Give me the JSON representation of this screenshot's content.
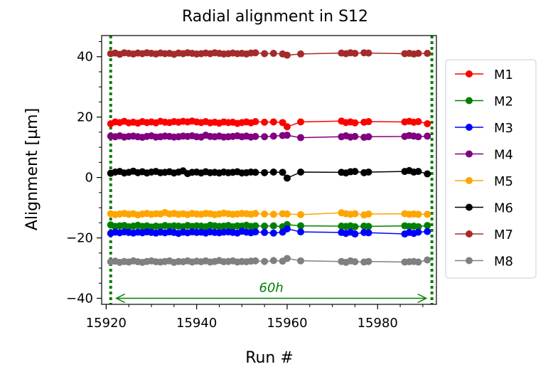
{
  "chart_data": {
    "type": "line",
    "title": "Radial alignment in S12",
    "xlabel": "Run #",
    "ylabel": "Alignment [µm]",
    "xlim": [
      15919,
      15993
    ],
    "ylim": [
      -42,
      47
    ],
    "xticks": [
      15920,
      15940,
      15960,
      15980
    ],
    "xtick_labels": [
      "15920",
      "15940",
      "15960",
      "15980"
    ],
    "yticks": [
      -40,
      -20,
      0,
      20,
      40
    ],
    "ytick_labels": [
      "−40",
      "−20",
      "0",
      "20",
      "40"
    ],
    "grid": false,
    "legend_position": "outside-right",
    "x": [
      15921,
      15922,
      15923,
      15924,
      15925,
      15926,
      15927,
      15928,
      15929,
      15930,
      15931,
      15932,
      15933,
      15934,
      15935,
      15936,
      15937,
      15938,
      15939,
      15940,
      15941,
      15942,
      15943,
      15944,
      15945,
      15946,
      15947,
      15948,
      15949,
      15950,
      15951,
      15952,
      15953,
      15955,
      15957,
      15959,
      15960,
      15963,
      15972,
      15973,
      15974,
      15975,
      15977,
      15978,
      15986,
      15987,
      15988,
      15989,
      15991
    ],
    "series": [
      {
        "name": "M1",
        "color": "#ff0000",
        "values": [
          17.8,
          18.4,
          18.2,
          18.6,
          18.1,
          18.3,
          18.0,
          18.5,
          18.2,
          18.4,
          18.1,
          18.6,
          18.3,
          18.2,
          18.5,
          18.3,
          18.6,
          18.4,
          18.7,
          18.4,
          18.2,
          18.5,
          18.1,
          18.3,
          18.0,
          18.4,
          18.2,
          18.3,
          17.9,
          18.2,
          18.4,
          18.1,
          18.5,
          18.3,
          18.4,
          18.2,
          16.8,
          18.4,
          18.7,
          18.2,
          18.4,
          18.1,
          18.3,
          18.5,
          18.4,
          18.6,
          18.3,
          18.5,
          17.8
        ]
      },
      {
        "name": "M2",
        "color": "#008000",
        "values": [
          -15.7,
          -16.2,
          -16.0,
          -15.9,
          -16.3,
          -16.1,
          -15.8,
          -16.2,
          -16.0,
          -16.4,
          -16.1,
          -16.3,
          -15.9,
          -16.2,
          -16.0,
          -16.1,
          -16.3,
          -15.9,
          -16.2,
          -16.0,
          -16.1,
          -16.3,
          -15.8,
          -16.0,
          -16.2,
          -16.1,
          -15.9,
          -16.3,
          -16.0,
          -16.1,
          -15.8,
          -16.2,
          -16.0,
          -16.1,
          -16.0,
          -16.3,
          -15.6,
          -16.0,
          -16.1,
          -16.2,
          -16.0,
          -16.3,
          -16.1,
          -16.2,
          -16.0,
          -16.2,
          -16.1,
          -16.3,
          -15.9
        ]
      },
      {
        "name": "M3",
        "color": "#0000ff",
        "values": [
          -18.5,
          -18.1,
          -18.3,
          -18.0,
          -18.2,
          -18.4,
          -18.1,
          -18.3,
          -18.0,
          -18.2,
          -18.4,
          -18.1,
          -18.3,
          -18.0,
          -18.2,
          -18.5,
          -18.1,
          -18.3,
          -18.0,
          -18.2,
          -18.1,
          -18.4,
          -18.0,
          -18.2,
          -18.3,
          -18.1,
          -18.0,
          -18.2,
          -18.4,
          -17.8,
          -18.1,
          -18.3,
          -18.0,
          -18.2,
          -18.4,
          -18.1,
          -17.0,
          -18.0,
          -18.2,
          -18.5,
          -18.1,
          -18.7,
          -18.2,
          -18.3,
          -18.7,
          -18.2,
          -18.5,
          -18.1,
          -17.9
        ]
      },
      {
        "name": "M4",
        "color": "#800080",
        "values": [
          13.7,
          13.5,
          13.8,
          13.4,
          13.6,
          13.7,
          13.5,
          13.3,
          13.6,
          13.8,
          13.4,
          13.5,
          13.7,
          13.6,
          13.4,
          13.5,
          13.7,
          13.6,
          13.8,
          13.5,
          13.4,
          14.0,
          13.6,
          13.5,
          13.7,
          13.4,
          13.5,
          13.6,
          13.8,
          13.5,
          13.7,
          13.4,
          13.6,
          13.5,
          13.7,
          13.9,
          14.0,
          13.2,
          13.5,
          13.8,
          13.4,
          13.6,
          13.3,
          13.5,
          13.6,
          13.9,
          13.7,
          13.5,
          13.7
        ]
      },
      {
        "name": "M5",
        "color": "#ffa500",
        "values": [
          -12.0,
          -12.3,
          -12.1,
          -11.9,
          -12.2,
          -12.0,
          -12.4,
          -12.1,
          -11.9,
          -12.2,
          -12.0,
          -12.1,
          -11.6,
          -12.1,
          -11.9,
          -12.2,
          -12.0,
          -12.3,
          -11.9,
          -12.1,
          -12.2,
          -11.9,
          -12.0,
          -12.3,
          -12.1,
          -11.8,
          -12.0,
          -12.2,
          -12.1,
          -11.9,
          -12.0,
          -12.2,
          -11.9,
          -12.1,
          -12.2,
          -12.0,
          -12.1,
          -12.3,
          -11.7,
          -12.0,
          -12.2,
          -12.0,
          -12.4,
          -12.1,
          -12.0,
          -12.2,
          -12.1,
          -12.2,
          -12.2
        ]
      },
      {
        "name": "M6",
        "color": "#000000",
        "values": [
          1.4,
          1.8,
          2.0,
          1.5,
          1.7,
          2.1,
          1.6,
          1.9,
          1.5,
          1.8,
          2.0,
          1.6,
          1.7,
          1.9,
          1.5,
          1.8,
          2.2,
          1.3,
          1.7,
          1.8,
          1.5,
          1.9,
          1.6,
          1.7,
          1.5,
          1.8,
          1.6,
          1.7,
          1.9,
          1.5,
          1.6,
          1.8,
          1.7,
          1.6,
          1.8,
          1.7,
          -0.2,
          1.8,
          1.7,
          1.5,
          1.9,
          2.0,
          1.6,
          1.8,
          2.0,
          2.3,
          1.8,
          2.0,
          1.2
        ]
      },
      {
        "name": "M7",
        "color": "#a52a2a",
        "values": [
          41.0,
          41.2,
          40.8,
          41.3,
          41.1,
          40.9,
          41.2,
          41.0,
          41.3,
          41.1,
          40.9,
          41.2,
          41.0,
          41.1,
          40.8,
          41.2,
          41.0,
          41.3,
          41.1,
          40.9,
          41.0,
          41.2,
          41.0,
          41.3,
          41.1,
          40.9,
          41.0,
          41.2,
          41.0,
          41.1,
          40.9,
          41.2,
          41.3,
          41.0,
          41.1,
          40.9,
          40.5,
          40.9,
          41.2,
          41.0,
          41.3,
          41.1,
          41.3,
          41.2,
          41.0,
          41.1,
          40.9,
          41.1,
          41.1
        ]
      },
      {
        "name": "M8",
        "color": "#808080",
        "values": [
          -27.9,
          -27.7,
          -28.1,
          -27.8,
          -28.0,
          -27.6,
          -27.9,
          -28.1,
          -27.8,
          -27.6,
          -27.9,
          -28.0,
          -27.8,
          -27.6,
          -28.1,
          -27.8,
          -27.9,
          -27.6,
          -28.0,
          -27.7,
          -27.9,
          -27.6,
          -28.0,
          -27.8,
          -27.5,
          -27.9,
          -27.8,
          -27.6,
          -28.0,
          -27.8,
          -27.9,
          -27.7,
          -27.6,
          -27.8,
          -27.5,
          -27.7,
          -26.8,
          -27.6,
          -27.8,
          -28.1,
          -27.6,
          -27.9,
          -28.0,
          -27.8,
          -28.0,
          -27.9,
          -27.8,
          -28.0,
          -27.3
        ]
      }
    ],
    "annotations": [
      {
        "type": "vline",
        "x": 15921,
        "color": "#008000",
        "style": "dotted"
      },
      {
        "type": "vline",
        "x": 15992,
        "color": "#008000",
        "style": "dotted"
      },
      {
        "type": "double-arrow",
        "x_start": 15921,
        "x_end": 15992,
        "y": -40,
        "color": "#008000",
        "label": "60h"
      }
    ]
  }
}
